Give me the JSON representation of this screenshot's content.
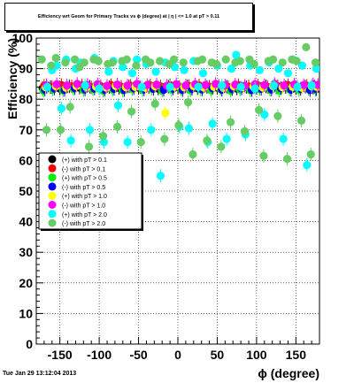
{
  "title": "Efficiency wrt Geom for Primary Tracks vs ϕ (degree) at | η | <= 1.0 at pT > 0.11",
  "footer": "Tue Jan 29 13:12:04 2013",
  "chart_data": {
    "type": "scatter",
    "title": "Efficiency wrt Geom for Primary Tracks vs ϕ (degree) at | η | <= 1.0 at pT > 0.11",
    "xlabel": "ϕ (degree)",
    "ylabel": "Efficiency (%)",
    "xlim": [
      -180,
      180
    ],
    "ylim": [
      0,
      100
    ],
    "xticks": [
      -150,
      -100,
      -50,
      0,
      50,
      100,
      150
    ],
    "yticks": [
      0,
      10,
      20,
      30,
      40,
      50,
      60,
      70,
      80,
      90,
      100
    ],
    "grid": true,
    "legend_position": "left-middle",
    "series": [
      {
        "name": "(+) with pT > 0.1",
        "color": "#000000",
        "jitter": 0.8,
        "x": [
          -172,
          -162,
          -150,
          -138,
          -125,
          -112,
          -100,
          -87,
          -75,
          -62,
          -50,
          -37,
          -25,
          -12,
          0,
          12,
          25,
          37,
          50,
          62,
          75,
          87,
          100,
          112,
          125,
          137,
          150,
          162,
          172
        ],
        "y": [
          83.6,
          84.0,
          83.5,
          84.2,
          83.8,
          84.1,
          83.6,
          84.0,
          83.7,
          84.2,
          83.8,
          84.0,
          83.5,
          84.1,
          83.9,
          84.2,
          83.6,
          84.0,
          83.8,
          84.1,
          83.5,
          84.0,
          83.7,
          84.2,
          83.9,
          84.0,
          83.6,
          84.1,
          83.8
        ]
      },
      {
        "name": "(-) with pT > 0.1",
        "color": "#ff0000",
        "jitter": 0.8,
        "x": [
          -170,
          -160,
          -148,
          -135,
          -122,
          -110,
          -98,
          -85,
          -72,
          -60,
          -48,
          -35,
          -22,
          -10,
          2,
          14,
          27,
          40,
          52,
          64,
          77,
          90,
          102,
          114,
          127,
          140,
          152,
          164,
          174
        ],
        "y": [
          84.4,
          84.0,
          84.6,
          84.2,
          84.5,
          83.9,
          84.3,
          84.6,
          84.1,
          84.4,
          84.0,
          84.5,
          84.2,
          84.6,
          84.0,
          84.3,
          84.5,
          84.1,
          84.4,
          84.0,
          84.6,
          84.2,
          84.5,
          84.0,
          84.3,
          84.6,
          84.1,
          84.4,
          84.2
        ]
      },
      {
        "name": "(+) with pT > 0.5",
        "color": "#00ee00",
        "jitter": 0.8,
        "x": [
          -171,
          -159,
          -146,
          -133,
          -120,
          -108,
          -95,
          -83,
          -70,
          -58,
          -45,
          -33,
          -20,
          -8,
          4,
          16,
          29,
          42,
          54,
          67,
          79,
          92,
          104,
          117,
          129,
          142,
          154,
          166,
          175
        ],
        "y": [
          82.8,
          83.2,
          82.9,
          83.4,
          83.0,
          83.3,
          82.8,
          83.2,
          82.9,
          83.3,
          83.0,
          83.4,
          82.8,
          83.1,
          83.3,
          82.9,
          83.2,
          83.0,
          83.4,
          82.8,
          83.2,
          82.9,
          83.3,
          83.1,
          82.8,
          83.2,
          83.0,
          83.4,
          83.1
        ]
      },
      {
        "name": "(-) with pT > 0.5",
        "color": "#0000ff",
        "jitter": 0.8,
        "x": [
          -169,
          -157,
          -144,
          -131,
          -118,
          -106,
          -93,
          -81,
          -68,
          -56,
          -43,
          -31,
          -18,
          -6,
          6,
          18,
          31,
          44,
          56,
          69,
          81,
          94,
          106,
          119,
          131,
          144,
          156,
          168,
          176
        ],
        "y": [
          83.1,
          83.5,
          83.0,
          83.6,
          83.2,
          83.5,
          83.1,
          83.4,
          83.0,
          83.6,
          83.2,
          83.4,
          83.1,
          83.5,
          83.0,
          83.4,
          83.2,
          83.6,
          83.1,
          83.3,
          83.5,
          83.0,
          83.4,
          83.2,
          83.6,
          83.1,
          83.4,
          83.0,
          83.3
        ]
      },
      {
        "name": "(+) with pT > 1.0",
        "color": "#ffff00",
        "jitter": 0.8,
        "x": [
          -168,
          -155,
          -142,
          -129,
          -116,
          -104,
          -91,
          -79,
          -66,
          -54,
          -41,
          -29,
          -16,
          -4,
          8,
          20,
          33,
          46,
          58,
          71,
          83,
          96,
          108,
          121,
          133,
          146,
          158,
          170,
          177
        ],
        "y": [
          83.9,
          84.2,
          83.7,
          84.3,
          83.9,
          84.1,
          83.8,
          84.3,
          83.9,
          84.0,
          83.7,
          84.2,
          75.5,
          84.1,
          83.9,
          84.3,
          83.8,
          84.0,
          83.7,
          84.2,
          83.9,
          84.1,
          83.8,
          84.3,
          83.9,
          84.0,
          83.7,
          84.2,
          84.0
        ]
      },
      {
        "name": "(-) with pT > 1.0",
        "color": "#ff00ff",
        "jitter": 0.8,
        "x": [
          -167,
          -154,
          -141,
          -128,
          -115,
          -102,
          -90,
          -77,
          -64,
          -52,
          -39,
          -27,
          -14,
          -2,
          10,
          22,
          35,
          48,
          60,
          73,
          85,
          98,
          110,
          123,
          135,
          148,
          160,
          172,
          178
        ],
        "y": [
          84.6,
          84.9,
          84.5,
          85.0,
          84.7,
          84.9,
          84.4,
          84.8,
          84.5,
          85.0,
          84.6,
          84.8,
          84.4,
          84.9,
          84.5,
          84.9,
          84.6,
          85.0,
          84.5,
          84.8,
          84.4,
          84.9,
          84.6,
          85.0,
          84.5,
          84.8,
          84.6,
          84.9,
          84.7
        ]
      },
      {
        "name": "(+) with pT > 2.0",
        "color": "#00ffff",
        "jitter": 0,
        "x": [
          -166,
          -160,
          -154,
          -148,
          -142,
          -136,
          -130,
          -124,
          -118,
          -112,
          -106,
          -100,
          -94,
          -88,
          -82,
          -76,
          -70,
          -64,
          -58,
          -52,
          -46,
          -40,
          -34,
          -28,
          -22,
          -16,
          -10,
          -4,
          2,
          8,
          14,
          20,
          26,
          32,
          38,
          44,
          50,
          56,
          62,
          68,
          74,
          80,
          86,
          92,
          98,
          104,
          110,
          116,
          122,
          128,
          134,
          140,
          146,
          152,
          158,
          164,
          170,
          176
        ],
        "y": [
          84.0,
          89.5,
          91.0,
          77.0,
          93.0,
          66.5,
          90.0,
          92.0,
          84.5,
          70.0,
          93.5,
          83.5,
          66.0,
          89.0,
          92.5,
          78.0,
          90.5,
          66.0,
          88.5,
          93.0,
          84.0,
          91.5,
          70.0,
          89.0,
          55.0,
          92.0,
          84.0,
          90.5,
          71.0,
          89.5,
          70.5,
          92.5,
          84.0,
          88.5,
          66.0,
          72.0,
          91.0,
          84.5,
          67.0,
          90.0,
          94.5,
          84.0,
          68.5,
          91.0,
          83.5,
          89.5,
          75.0,
          92.0,
          84.5,
          90.0,
          67.0,
          88.5,
          93.0,
          84.0,
          91.0,
          58.5,
          84.5,
          90.0
        ]
      },
      {
        "name": "(-) with pT > 2.0",
        "color": "#66cc66",
        "jitter": 0,
        "x": [
          -173,
          -167,
          -161,
          -155,
          -149,
          -143,
          -137,
          -131,
          -125,
          -119,
          -113,
          -107,
          -101,
          -95,
          -89,
          -83,
          -77,
          -71,
          -65,
          -59,
          -53,
          -47,
          -41,
          -35,
          -29,
          -23,
          -17,
          -11,
          -5,
          1,
          7,
          13,
          19,
          25,
          31,
          37,
          43,
          49,
          55,
          61,
          67,
          73,
          79,
          85,
          91,
          97,
          103,
          109,
          115,
          121,
          127,
          133,
          139,
          145,
          151,
          157,
          163,
          169,
          175
        ],
        "y": [
          93.0,
          70.0,
          91.0,
          93.5,
          70.0,
          92.0,
          77.5,
          93.0,
          90.5,
          92.0,
          64.5,
          93.0,
          92.5,
          68.0,
          91.5,
          92.0,
          71.0,
          92.5,
          93.0,
          76.0,
          91.0,
          66.0,
          93.0,
          92.0,
          78.5,
          92.5,
          67.0,
          91.5,
          93.0,
          71.5,
          92.0,
          79.0,
          62.0,
          92.5,
          93.0,
          66.5,
          92.0,
          91.5,
          64.5,
          93.0,
          72.5,
          92.0,
          92.5,
          69.5,
          93.0,
          91.5,
          76.5,
          61.5,
          92.5,
          93.0,
          74.5,
          92.0,
          60.5,
          93.0,
          92.5,
          73.0,
          97.0,
          62.0,
          92.0
        ]
      }
    ]
  }
}
